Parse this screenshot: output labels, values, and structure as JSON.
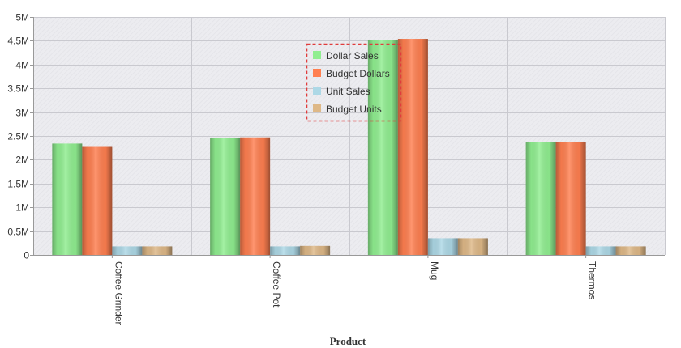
{
  "chart_data": {
    "type": "bar",
    "title": "",
    "xlabel": "Product",
    "ylabel": "",
    "categories": [
      "Coffee Grinder",
      "Coffee Pot",
      "Mug",
      "Thermos"
    ],
    "series": [
      {
        "name": "Dollar Sales",
        "color": "#90ee90",
        "values": [
          2340000,
          2450000,
          4520000,
          2380000
        ]
      },
      {
        "name": "Budget Dollars",
        "color": "#ff7f50",
        "values": [
          2270000,
          2470000,
          4540000,
          2370000
        ]
      },
      {
        "name": "Unit Sales",
        "color": "#add8e6",
        "values": [
          180000,
          180000,
          350000,
          180000
        ]
      },
      {
        "name": "Budget Units",
        "color": "#deb887",
        "values": [
          180000,
          190000,
          350000,
          180000
        ]
      }
    ],
    "ylim": [
      0,
      5000000
    ],
    "y_ticks": [
      {
        "value": 0,
        "label": "0"
      },
      {
        "value": 500000,
        "label": "0.5M"
      },
      {
        "value": 1000000,
        "label": "1M"
      },
      {
        "value": 1500000,
        "label": "1.5M"
      },
      {
        "value": 2000000,
        "label": "2M"
      },
      {
        "value": 2500000,
        "label": "2.5M"
      },
      {
        "value": 3000000,
        "label": "3M"
      },
      {
        "value": 3500000,
        "label": "3.5M"
      },
      {
        "value": 4000000,
        "label": "4M"
      },
      {
        "value": 4500000,
        "label": "4.5M"
      },
      {
        "value": 5000000,
        "label": "5M"
      }
    ],
    "grid": true,
    "legend_position": "top-center",
    "legend_border_color": "#e03c3c",
    "plot_background": "#ebebef",
    "x_tick_rotation": "vertical"
  }
}
